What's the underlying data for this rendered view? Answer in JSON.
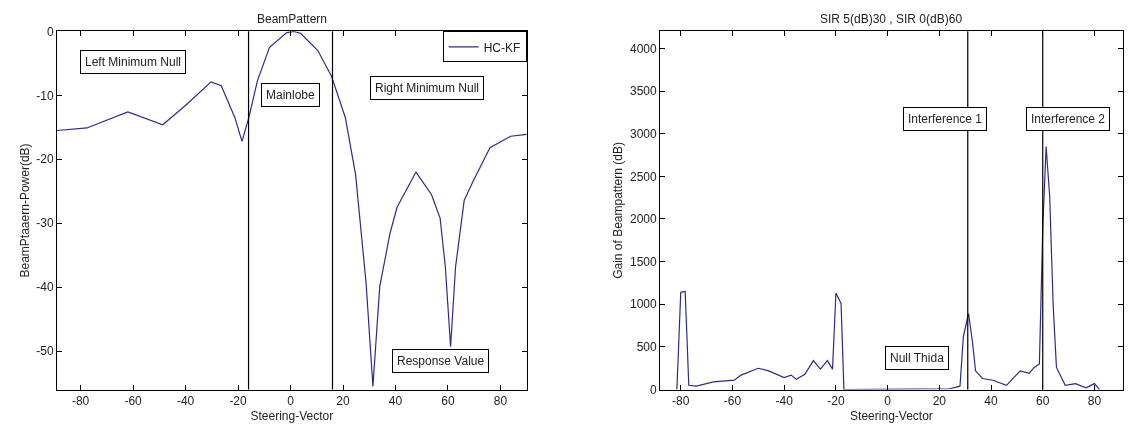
{
  "chart_data": [
    {
      "type": "line",
      "title": "BeamPattern",
      "xlabel": "Steering-Vector",
      "ylabel": "BeamPtaaern-Power(dB)",
      "xlim": [
        -89,
        90
      ],
      "ylim": [
        -56,
        0
      ],
      "xticks": [
        -80,
        -60,
        -40,
        -20,
        0,
        20,
        40,
        60,
        80
      ],
      "yticks": [
        -50,
        -40,
        -30,
        -20,
        -10,
        0
      ],
      "legend": "top right",
      "series": [
        {
          "name": "HC-KF",
          "color": "#2b2b8c",
          "x": [
            -89,
            -77.6,
            -62,
            -48.7,
            -39.5,
            -30.3,
            -26.4,
            -21.2,
            -18.5,
            -15.9,
            -12.6,
            -8,
            -1.4,
            1.2,
            3.8,
            10.4,
            15.6,
            20.9,
            24.8,
            28.8,
            31.4,
            34,
            37.9,
            40.6,
            47.8,
            53.7,
            57,
            59,
            61,
            62.9,
            66.2,
            69.5,
            76,
            83.9,
            90
          ],
          "values": [
            -15.5,
            -15.1,
            -12.6,
            -14.6,
            -11.4,
            -7.9,
            -8.5,
            -13.5,
            -17.2,
            -13.5,
            -7.7,
            -2.5,
            -0.2,
            0,
            -0.3,
            -3,
            -7,
            -13.5,
            -22.4,
            -39.4,
            -55.5,
            -39.9,
            -31.6,
            -27.5,
            -22,
            -25.5,
            -29.2,
            -36.8,
            -49.3,
            -36.8,
            -26.4,
            -23.5,
            -18.2,
            -16.4,
            -16.1
          ]
        }
      ],
      "ref_lines": [
        {
          "axis": "x",
          "value": -16
        },
        {
          "axis": "x",
          "value": 16
        }
      ],
      "annotations": [
        "Left Minimum Null",
        "Mainlobe",
        "Right Minimum Null",
        "Response Value"
      ]
    },
    {
      "type": "line",
      "title": "SIR 5(dB)30 , SIR 0(dB)60",
      "xlabel": "Steering-Vector",
      "ylabel": "Gain of Beampattern (dB)",
      "xlim": [
        -88,
        91
      ],
      "ylim": [
        0,
        4200
      ],
      "xticks": [
        -80,
        -60,
        -40,
        -20,
        0,
        20,
        40,
        60,
        80
      ],
      "yticks": [
        0,
        500,
        1000,
        1500,
        2000,
        2500,
        3000,
        3500,
        4000
      ],
      "series": [
        {
          "color": "#2b2b8c",
          "x": [
            -81.5,
            -80.4,
            -80,
            -78.3,
            -77.6,
            -76.9,
            -74,
            -67.3,
            -59.3,
            -56.7,
            -50,
            -46,
            -40,
            -37.3,
            -35.3,
            -32,
            -28.7,
            -26,
            -23.3,
            -21.3,
            -20,
            -18,
            -16.9,
            24,
            28,
            29.3,
            31.3,
            32.9,
            34,
            36.7,
            40.7,
            46,
            51.3,
            54.7,
            56.7,
            58.7,
            60,
            61.3,
            62.7,
            64,
            65.3,
            68.7,
            72.7,
            76.7,
            80,
            82
          ],
          "values": [
            0,
            830,
            1140,
            1150,
            620,
            50,
            40,
            90,
            110,
            170,
            250,
            220,
            140,
            170,
            120,
            180,
            340,
            240,
            340,
            240,
            1130,
            1010,
            0,
            10,
            40,
            620,
            890,
            540,
            220,
            130,
            110,
            50,
            220,
            190,
            260,
            300,
            1880,
            2850,
            2260,
            1010,
            260,
            50,
            70,
            20,
            70,
            0
          ]
        }
      ],
      "ref_lines": [
        {
          "axis": "x",
          "value": 31
        },
        {
          "axis": "x",
          "value": 60
        }
      ],
      "annotations": [
        "Interference 1",
        "Interference 2",
        "Null Thida"
      ]
    }
  ]
}
